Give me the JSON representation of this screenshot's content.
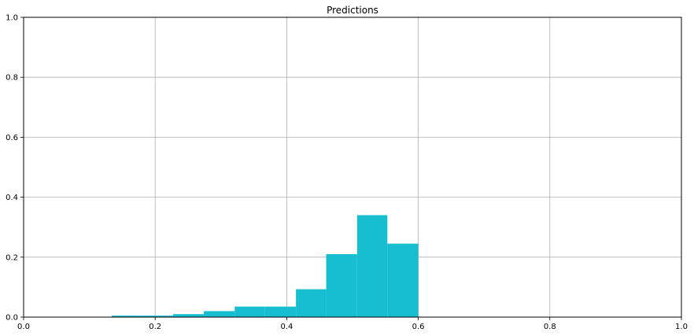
{
  "chart_data": {
    "type": "bar",
    "title": "Predictions",
    "xlabel": "",
    "ylabel": "",
    "xlim": [
      0,
      1
    ],
    "ylim": [
      0,
      1
    ],
    "xticks": [
      "0.0",
      "0.2",
      "0.4",
      "0.6",
      "0.8",
      "1.0"
    ],
    "yticks": [
      "0.0",
      "0.2",
      "0.4",
      "0.6",
      "0.8",
      "1.0"
    ],
    "grid": true,
    "bar_color": "#17becf",
    "bins": [
      {
        "x0": 0.134,
        "x1": 0.181,
        "value": 0.005
      },
      {
        "x0": 0.181,
        "x1": 0.227,
        "value": 0.005
      },
      {
        "x0": 0.227,
        "x1": 0.274,
        "value": 0.01
      },
      {
        "x0": 0.274,
        "x1": 0.321,
        "value": 0.02
      },
      {
        "x0": 0.321,
        "x1": 0.367,
        "value": 0.035
      },
      {
        "x0": 0.367,
        "x1": 0.414,
        "value": 0.035
      },
      {
        "x0": 0.414,
        "x1": 0.46,
        "value": 0.093
      },
      {
        "x0": 0.46,
        "x1": 0.507,
        "value": 0.21
      },
      {
        "x0": 0.507,
        "x1": 0.553,
        "value": 0.34
      },
      {
        "x0": 0.553,
        "x1": 0.6,
        "value": 0.245
      }
    ]
  }
}
